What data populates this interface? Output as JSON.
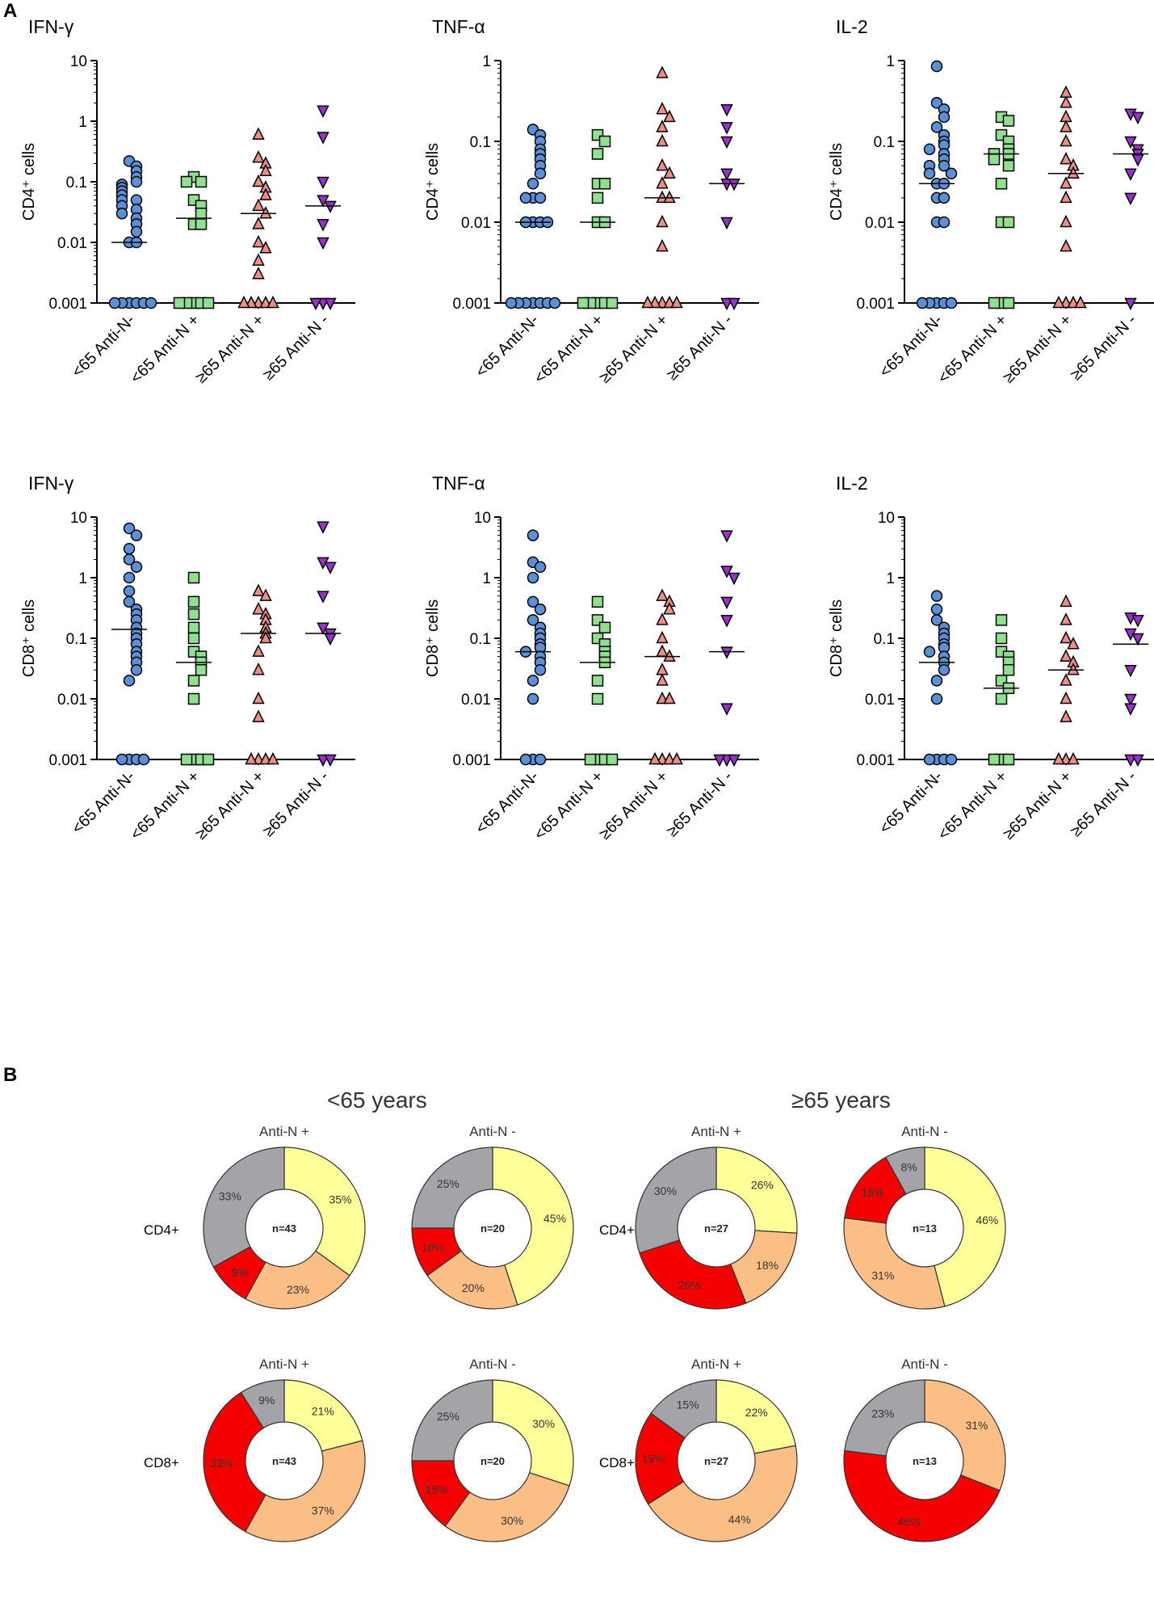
{
  "panels": {
    "a": "A",
    "b": "B"
  },
  "colors": {
    "group_fill": [
      "#5b8fd6",
      "#8fe08f",
      "#f08e86",
      "#9b2fd0"
    ],
    "donut": {
      "grey": "#a4a4a8",
      "yellow": "#ffff9a",
      "orange": "#fbbf86",
      "red": "#f40000"
    }
  },
  "group_markers": [
    "circle",
    "square",
    "triangle-up",
    "triangle-down"
  ],
  "chart_data": [
    {
      "type": "scatter",
      "id": "cd4-ifng",
      "title": "IFN-γ",
      "ylabel": "CD4⁺ cells",
      "yscale": "log",
      "yticks": [
        "10",
        "1",
        "0.1",
        "0.01",
        "0.001"
      ],
      "categories": [
        "<65 Anti-N-",
        "<65 Anti-N +",
        "≥65 Anti-N +",
        "≥65 Anti-N -"
      ],
      "ylim": [
        0.001,
        10
      ],
      "medians": [
        0.01,
        0.025,
        0.03,
        0.04
      ],
      "series": [
        {
          "name": "<65 Anti-N-",
          "values": [
            0.22,
            0.18,
            0.15,
            0.12,
            0.1,
            0.09,
            0.08,
            0.07,
            0.06,
            0.05,
            0.05,
            0.04,
            0.035,
            0.03,
            0.025,
            0.02,
            0.015,
            0.01,
            0.01,
            0.001,
            0.001,
            0.001,
            0.001,
            0.001,
            0.001
          ]
        },
        {
          "name": "<65 Anti-N +",
          "values": [
            0.12,
            0.1,
            0.1,
            0.05,
            0.04,
            0.03,
            0.02,
            0.02,
            0.001,
            0.001,
            0.001,
            0.001,
            0.001
          ]
        },
        {
          "name": "≥65 Anti-N +",
          "values": [
            0.6,
            0.25,
            0.2,
            0.15,
            0.1,
            0.08,
            0.06,
            0.04,
            0.03,
            0.02,
            0.01,
            0.008,
            0.005,
            0.003,
            0.001,
            0.001,
            0.001,
            0.001,
            0.001
          ]
        },
        {
          "name": "≥65 Anti-N -",
          "values": [
            1.5,
            0.55,
            0.1,
            0.05,
            0.04,
            0.02,
            0.01,
            0.001,
            0.001,
            0.001
          ]
        }
      ]
    },
    {
      "type": "scatter",
      "id": "cd4-tnfa",
      "title": "TNF-α",
      "ylabel": "CD4⁺ cells",
      "yscale": "log",
      "yticks": [
        "1",
        "0.1",
        "0.01",
        "0.001"
      ],
      "categories": [
        "<65 Anti-N-",
        "<65 Anti-N +",
        "≥65 Anti-N +",
        "≥65 Anti-N -"
      ],
      "ylim": [
        0.001,
        1
      ],
      "medians": [
        0.01,
        0.01,
        0.02,
        0.03
      ],
      "series": [
        {
          "name": "<65 Anti-N-",
          "values": [
            0.14,
            0.12,
            0.1,
            0.08,
            0.07,
            0.06,
            0.05,
            0.04,
            0.03,
            0.02,
            0.02,
            0.02,
            0.01,
            0.01,
            0.01,
            0.01,
            0.001,
            0.001,
            0.001,
            0.001,
            0.001,
            0.001,
            0.001
          ]
        },
        {
          "name": "<65 Anti-N +",
          "values": [
            0.12,
            0.1,
            0.07,
            0.03,
            0.03,
            0.02,
            0.01,
            0.01,
            0.001,
            0.001,
            0.001,
            0.001,
            0.001
          ]
        },
        {
          "name": "≥65 Anti-N +",
          "values": [
            0.7,
            0.25,
            0.2,
            0.15,
            0.1,
            0.05,
            0.04,
            0.03,
            0.02,
            0.02,
            0.01,
            0.005,
            0.001,
            0.001,
            0.001,
            0.001,
            0.001
          ]
        },
        {
          "name": "≥65 Anti-N -",
          "values": [
            0.25,
            0.15,
            0.1,
            0.04,
            0.03,
            0.03,
            0.01,
            0.001,
            0.001
          ]
        }
      ]
    },
    {
      "type": "scatter",
      "id": "cd4-il2",
      "title": "IL-2",
      "ylabel": "CD4⁺ cells",
      "yscale": "log",
      "yticks": [
        "1",
        "0.1",
        "0.01",
        "0.001"
      ],
      "categories": [
        "<65 Anti-N-",
        "<65 Anti-N +",
        "≥65 Anti-N +",
        "≥65 Anti-N -"
      ],
      "ylim": [
        0.001,
        1
      ],
      "medians": [
        0.03,
        0.07,
        0.04,
        0.07
      ],
      "series": [
        {
          "name": "<65 Anti-N-",
          "values": [
            0.85,
            0.3,
            0.25,
            0.2,
            0.15,
            0.12,
            0.1,
            0.09,
            0.08,
            0.07,
            0.06,
            0.05,
            0.05,
            0.04,
            0.04,
            0.03,
            0.03,
            0.02,
            0.02,
            0.01,
            0.01,
            0.001,
            0.001,
            0.001,
            0.001,
            0.001
          ]
        },
        {
          "name": "<65 Anti-N +",
          "values": [
            0.2,
            0.18,
            0.12,
            0.1,
            0.08,
            0.07,
            0.07,
            0.06,
            0.05,
            0.03,
            0.01,
            0.01,
            0.001,
            0.001,
            0.001
          ]
        },
        {
          "name": "≥65 Anti-N +",
          "values": [
            0.4,
            0.3,
            0.2,
            0.15,
            0.1,
            0.06,
            0.05,
            0.04,
            0.03,
            0.02,
            0.01,
            0.005,
            0.001,
            0.001,
            0.001,
            0.001
          ]
        },
        {
          "name": "≥65 Anti-N -",
          "values": [
            0.22,
            0.2,
            0.1,
            0.08,
            0.07,
            0.06,
            0.04,
            0.02,
            0.001
          ]
        }
      ]
    },
    {
      "type": "scatter",
      "id": "cd8-ifng",
      "title": "IFN-γ",
      "ylabel": "CD8⁺ cells",
      "yscale": "log",
      "yticks": [
        "10",
        "1",
        "0.1",
        "0.01",
        "0.001"
      ],
      "categories": [
        "<65 Anti-N-",
        "<65 Anti-N +",
        "≥65 Anti-N +",
        "≥65 Anti-N -"
      ],
      "ylim": [
        0.001,
        10
      ],
      "medians": [
        0.14,
        0.04,
        0.12,
        0.12
      ],
      "series": [
        {
          "name": "<65 Anti-N-",
          "values": [
            6.5,
            5,
            3,
            2,
            1.5,
            1,
            0.6,
            0.4,
            0.3,
            0.25,
            0.2,
            0.15,
            0.12,
            0.1,
            0.08,
            0.06,
            0.05,
            0.04,
            0.03,
            0.02,
            0.001,
            0.001,
            0.001,
            0.001
          ]
        },
        {
          "name": "<65 Anti-N +",
          "values": [
            1,
            0.4,
            0.25,
            0.15,
            0.1,
            0.06,
            0.05,
            0.04,
            0.03,
            0.02,
            0.01,
            0.001,
            0.001,
            0.001,
            0.001
          ]
        },
        {
          "name": "≥65 Anti-N +",
          "values": [
            0.6,
            0.5,
            0.3,
            0.25,
            0.2,
            0.15,
            0.12,
            0.1,
            0.06,
            0.03,
            0.01,
            0.005,
            0.001,
            0.001,
            0.001,
            0.001
          ]
        },
        {
          "name": "≥65 Anti-N -",
          "values": [
            7,
            1.8,
            1.5,
            0.5,
            0.15,
            0.12,
            0.1,
            0.001,
            0.001
          ]
        }
      ]
    },
    {
      "type": "scatter",
      "id": "cd8-tnfa",
      "title": "TNF-α",
      "ylabel": "CD8⁺ cells",
      "yscale": "log",
      "yticks": [
        "10",
        "1",
        "0.1",
        "0.01",
        "0.001"
      ],
      "categories": [
        "<65 Anti-N-",
        "<65 Anti-N +",
        "≥65 Anti-N +",
        "≥65 Anti-N -"
      ],
      "ylim": [
        0.001,
        10
      ],
      "medians": [
        0.06,
        0.04,
        0.05,
        0.06
      ],
      "series": [
        {
          "name": "<65 Anti-N-",
          "values": [
            5,
            1.8,
            1.5,
            1,
            0.4,
            0.3,
            0.2,
            0.15,
            0.12,
            0.1,
            0.08,
            0.07,
            0.06,
            0.05,
            0.04,
            0.03,
            0.02,
            0.01,
            0.001,
            0.001,
            0.001
          ]
        },
        {
          "name": "<65 Anti-N +",
          "values": [
            0.4,
            0.2,
            0.15,
            0.1,
            0.08,
            0.06,
            0.05,
            0.04,
            0.02,
            0.01,
            0.001,
            0.001,
            0.001,
            0.001
          ]
        },
        {
          "name": "≥65 Anti-N +",
          "values": [
            0.5,
            0.4,
            0.3,
            0.2,
            0.1,
            0.06,
            0.05,
            0.03,
            0.02,
            0.01,
            0.01,
            0.001,
            0.001,
            0.001,
            0.001
          ]
        },
        {
          "name": "≥65 Anti-N -",
          "values": [
            5,
            1.3,
            1,
            0.4,
            0.2,
            0.06,
            0.007,
            0.001,
            0.001,
            0.001
          ]
        }
      ]
    },
    {
      "type": "scatter",
      "id": "cd8-il2",
      "title": "IL-2",
      "ylabel": "CD8⁺ cells",
      "yscale": "log",
      "yticks": [
        "10",
        "1",
        "0.1",
        "0.01",
        "0.001"
      ],
      "categories": [
        "<65 Anti-N-",
        "<65 Anti-N +",
        "≥65 Anti-N +",
        "≥65 Anti-N -"
      ],
      "ylim": [
        0.001,
        10
      ],
      "medians": [
        0.04,
        0.015,
        0.03,
        0.08
      ],
      "series": [
        {
          "name": "<65 Anti-N-",
          "values": [
            0.5,
            0.3,
            0.2,
            0.15,
            0.12,
            0.1,
            0.08,
            0.07,
            0.06,
            0.05,
            0.04,
            0.03,
            0.02,
            0.01,
            0.001,
            0.001,
            0.001,
            0.001
          ]
        },
        {
          "name": "<65 Anti-N +",
          "values": [
            0.2,
            0.1,
            0.06,
            0.05,
            0.04,
            0.03,
            0.02,
            0.015,
            0.01,
            0.001,
            0.001,
            0.001
          ]
        },
        {
          "name": "≥65 Anti-N +",
          "values": [
            0.4,
            0.2,
            0.1,
            0.08,
            0.05,
            0.04,
            0.03,
            0.02,
            0.01,
            0.005,
            0.001,
            0.001,
            0.001
          ]
        },
        {
          "name": "≥65 Anti-N -",
          "values": [
            0.22,
            0.2,
            0.12,
            0.1,
            0.03,
            0.01,
            0.007,
            0.001,
            0.001
          ]
        }
      ]
    },
    {
      "type": "pie",
      "id": "donut-cd4-u65-pos",
      "group": "<65 years",
      "row": "CD4+",
      "title": "Anti-N +",
      "center_label": "n=43",
      "slices": [
        {
          "color": "yellow",
          "value": 35,
          "label": "35%"
        },
        {
          "color": "orange",
          "value": 23,
          "label": "23%"
        },
        {
          "color": "red",
          "value": 9,
          "label": "9%"
        },
        {
          "color": "grey",
          "value": 33,
          "label": "33%"
        }
      ]
    },
    {
      "type": "pie",
      "id": "donut-cd4-u65-neg",
      "group": "<65 years",
      "row": "CD4+",
      "title": "Anti-N -",
      "center_label": "n=20",
      "slices": [
        {
          "color": "yellow",
          "value": 45,
          "label": "45%"
        },
        {
          "color": "orange",
          "value": 20,
          "label": "20%"
        },
        {
          "color": "red",
          "value": 10,
          "label": "10%"
        },
        {
          "color": "grey",
          "value": 25,
          "label": "25%"
        }
      ]
    },
    {
      "type": "pie",
      "id": "donut-cd4-o65-pos",
      "group": "≥65 years",
      "row": "CD4+",
      "title": "Anti-N +",
      "center_label": "n=27",
      "slices": [
        {
          "color": "yellow",
          "value": 26,
          "label": "26%"
        },
        {
          "color": "orange",
          "value": 18,
          "label": "18%"
        },
        {
          "color": "red",
          "value": 26,
          "label": "26%"
        },
        {
          "color": "grey",
          "value": 30,
          "label": "30%"
        }
      ]
    },
    {
      "type": "pie",
      "id": "donut-cd4-o65-neg",
      "group": "≥65 years",
      "row": "CD4+",
      "title": "Anti-N -",
      "center_label": "n=13",
      "slices": [
        {
          "color": "yellow",
          "value": 46,
          "label": "46%"
        },
        {
          "color": "orange",
          "value": 31,
          "label": "31%"
        },
        {
          "color": "red",
          "value": 15,
          "label": "15%"
        },
        {
          "color": "grey",
          "value": 8,
          "label": "8%"
        }
      ]
    },
    {
      "type": "pie",
      "id": "donut-cd8-u65-pos",
      "group": "<65 years",
      "row": "CD8+",
      "title": "Anti-N +",
      "center_label": "n=43",
      "slices": [
        {
          "color": "yellow",
          "value": 21,
          "label": "21%"
        },
        {
          "color": "orange",
          "value": 37,
          "label": "37%"
        },
        {
          "color": "red",
          "value": 33,
          "label": "33%"
        },
        {
          "color": "grey",
          "value": 9,
          "label": "9%"
        }
      ]
    },
    {
      "type": "pie",
      "id": "donut-cd8-u65-neg",
      "group": "<65 years",
      "row": "CD8+",
      "title": "Anti-N -",
      "center_label": "n=20",
      "slices": [
        {
          "color": "yellow",
          "value": 30,
          "label": "30%"
        },
        {
          "color": "orange",
          "value": 30,
          "label": "30%"
        },
        {
          "color": "red",
          "value": 15,
          "label": "15%"
        },
        {
          "color": "grey",
          "value": 25,
          "label": "25%"
        }
      ]
    },
    {
      "type": "pie",
      "id": "donut-cd8-o65-pos",
      "group": "≥65 years",
      "row": "CD8+",
      "title": "Anti-N +",
      "center_label": "n=27",
      "slices": [
        {
          "color": "yellow",
          "value": 22,
          "label": "22%"
        },
        {
          "color": "orange",
          "value": 44,
          "label": "44%"
        },
        {
          "color": "red",
          "value": 19,
          "label": "19%"
        },
        {
          "color": "grey",
          "value": 15,
          "label": "15%"
        }
      ]
    },
    {
      "type": "pie",
      "id": "donut-cd8-o65-neg",
      "group": "≥65 years",
      "row": "CD8+",
      "title": "Anti-N -",
      "center_label": "n=13",
      "slices": [
        {
          "color": "orange",
          "value": 31,
          "label": "31%"
        },
        {
          "color": "red",
          "value": 46,
          "label": "46%"
        },
        {
          "color": "grey",
          "value": 23,
          "label": "23%"
        }
      ]
    }
  ],
  "panel_b": {
    "groups": [
      "<65 years",
      "≥65 years"
    ],
    "rows": [
      "CD4+",
      "CD8+"
    ]
  }
}
